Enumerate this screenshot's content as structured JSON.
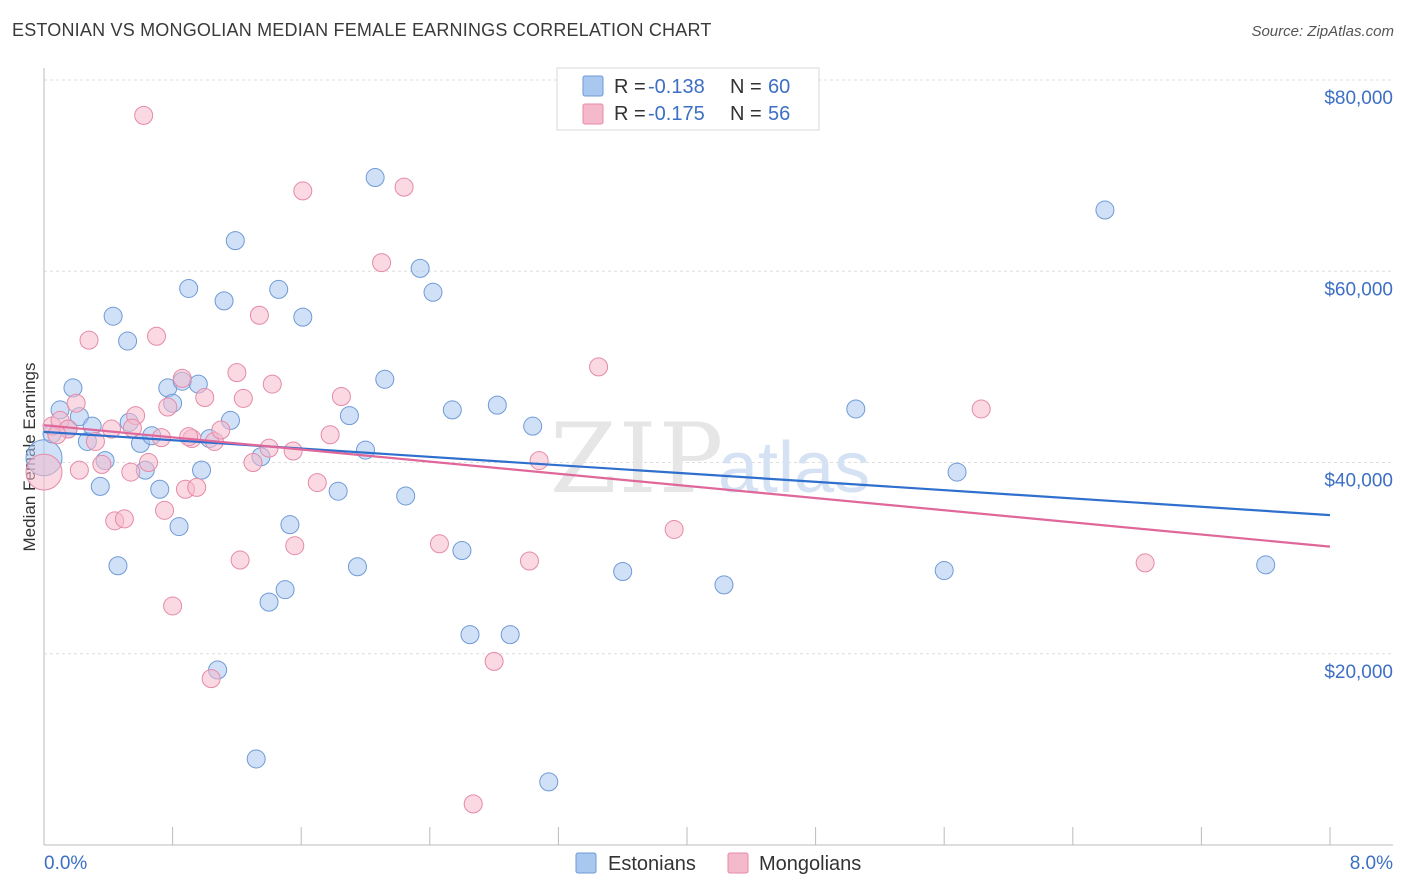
{
  "title": "ESTONIAN VS MONGOLIAN MEDIAN FEMALE EARNINGS CORRELATION CHART",
  "source": "Source: ZipAtlas.com",
  "colors": {
    "estonian_fill": "#a9c8f0",
    "estonian_stroke": "#6f9ad6",
    "estonian_line": "#2f6fcd",
    "mongolian_fill": "#f5b9cc",
    "mongolian_stroke": "#e58aa8",
    "mongolian_line": "#e0679a",
    "tick_label": "#3d6fc4",
    "grid": "#dddddd"
  },
  "legend": {
    "rows": [
      {
        "r_label": "R = ",
        "r_value": "-0.138",
        "n_label": "N = ",
        "n_value": "60"
      },
      {
        "r_label": "R = ",
        "r_value": "-0.175",
        "n_label": "N = ",
        "n_value": "56"
      }
    ]
  },
  "watermark": {
    "zip": "ZIP",
    "atlas": "atlas"
  },
  "chart_data": {
    "type": "scatter",
    "title": "ESTONIAN VS MONGOLIAN MEDIAN FEMALE EARNINGS CORRELATION CHART",
    "xlabel": "",
    "ylabel": "Median Female Earnings",
    "xlim": [
      0.0,
      8.0
    ],
    "ylim": [
      0,
      82000
    ],
    "x_tick_labels": [
      "0.0%",
      "8.0%"
    ],
    "y_ticks": [
      20000,
      40000,
      60000,
      80000
    ],
    "y_tick_labels": [
      "$20,000",
      "$40,000",
      "$60,000",
      "$80,000"
    ],
    "series": [
      {
        "name": "Estonians",
        "r": -0.138,
        "n": 60,
        "trend": {
          "x0": 0.0,
          "y0": 43200,
          "x1": 8.0,
          "y1": 34500
        },
        "points": [
          [
            0.0,
            40500
          ],
          [
            0.05,
            43000
          ],
          [
            0.1,
            45500
          ],
          [
            0.15,
            43500
          ],
          [
            0.18,
            47800
          ],
          [
            0.22,
            44800
          ],
          [
            0.27,
            42200
          ],
          [
            0.3,
            43800
          ],
          [
            0.35,
            37500
          ],
          [
            0.38,
            40200
          ],
          [
            0.43,
            55300
          ],
          [
            0.46,
            29200
          ],
          [
            0.52,
            52700
          ],
          [
            0.53,
            44200
          ],
          [
            0.6,
            42000
          ],
          [
            0.63,
            39200
          ],
          [
            0.67,
            42800
          ],
          [
            0.72,
            37200
          ],
          [
            0.77,
            47800
          ],
          [
            0.8,
            46200
          ],
          [
            0.84,
            33300
          ],
          [
            0.86,
            48500
          ],
          [
            0.9,
            58200
          ],
          [
            0.96,
            48200
          ],
          [
            0.98,
            39200
          ],
          [
            1.03,
            42500
          ],
          [
            1.08,
            18300
          ],
          [
            1.12,
            56900
          ],
          [
            1.16,
            44400
          ],
          [
            1.19,
            63200
          ],
          [
            1.32,
            9000
          ],
          [
            1.35,
            40600
          ],
          [
            1.4,
            25400
          ],
          [
            1.46,
            58100
          ],
          [
            1.5,
            26700
          ],
          [
            1.53,
            33500
          ],
          [
            1.61,
            55200
          ],
          [
            1.83,
            37000
          ],
          [
            1.9,
            44900
          ],
          [
            1.95,
            29100
          ],
          [
            2.0,
            41300
          ],
          [
            2.06,
            69800
          ],
          [
            2.12,
            48700
          ],
          [
            2.25,
            36500
          ],
          [
            2.34,
            60300
          ],
          [
            2.42,
            57800
          ],
          [
            2.54,
            45500
          ],
          [
            2.6,
            30800
          ],
          [
            2.65,
            22000
          ],
          [
            2.82,
            46000
          ],
          [
            2.9,
            22000
          ],
          [
            3.04,
            43800
          ],
          [
            3.14,
            6600
          ],
          [
            3.6,
            28600
          ],
          [
            4.23,
            27200
          ],
          [
            5.05,
            45600
          ],
          [
            5.6,
            28700
          ],
          [
            5.68,
            39000
          ],
          [
            6.6,
            66400
          ],
          [
            7.6,
            29300
          ]
        ]
      },
      {
        "name": "Mongolians",
        "r": -0.175,
        "n": 56,
        "trend": {
          "x0": 0.0,
          "y0": 43900,
          "x1": 8.0,
          "y1": 31200
        },
        "points": [
          [
            0.0,
            39000
          ],
          [
            0.05,
            43800
          ],
          [
            0.1,
            44400
          ],
          [
            0.15,
            43500
          ],
          [
            0.2,
            46200
          ],
          [
            0.22,
            39200
          ],
          [
            0.28,
            52800
          ],
          [
            0.32,
            42200
          ],
          [
            0.36,
            39800
          ],
          [
            0.42,
            43500
          ],
          [
            0.44,
            33900
          ],
          [
            0.5,
            34100
          ],
          [
            0.54,
            39000
          ],
          [
            0.57,
            44900
          ],
          [
            0.62,
            76300
          ],
          [
            0.65,
            40000
          ],
          [
            0.7,
            53200
          ],
          [
            0.73,
            42600
          ],
          [
            0.75,
            35000
          ],
          [
            0.77,
            45800
          ],
          [
            0.8,
            25000
          ],
          [
            0.86,
            48800
          ],
          [
            0.88,
            37200
          ],
          [
            0.92,
            42500
          ],
          [
            0.95,
            37400
          ],
          [
            1.0,
            46800
          ],
          [
            1.04,
            17400
          ],
          [
            1.06,
            42200
          ],
          [
            1.1,
            43400
          ],
          [
            1.2,
            49400
          ],
          [
            1.22,
            29800
          ],
          [
            1.24,
            46700
          ],
          [
            1.3,
            40000
          ],
          [
            1.34,
            55400
          ],
          [
            1.42,
            48200
          ],
          [
            1.4,
            41500
          ],
          [
            1.56,
            31300
          ],
          [
            1.61,
            68400
          ],
          [
            1.7,
            37900
          ],
          [
            1.78,
            42900
          ],
          [
            1.85,
            46900
          ],
          [
            2.1,
            60900
          ],
          [
            2.24,
            68800
          ],
          [
            2.46,
            31500
          ],
          [
            2.67,
            4300
          ],
          [
            2.8,
            19200
          ],
          [
            3.02,
            29700
          ],
          [
            3.08,
            40200
          ],
          [
            3.45,
            50000
          ],
          [
            3.92,
            33000
          ],
          [
            5.83,
            45600
          ],
          [
            6.85,
            29500
          ],
          [
            0.08,
            42900
          ],
          [
            0.55,
            43600
          ],
          [
            0.9,
            42700
          ],
          [
            1.55,
            41200
          ]
        ]
      }
    ]
  },
  "bottom_legend": [
    {
      "label": "Estonians"
    },
    {
      "label": "Mongolians"
    }
  ]
}
